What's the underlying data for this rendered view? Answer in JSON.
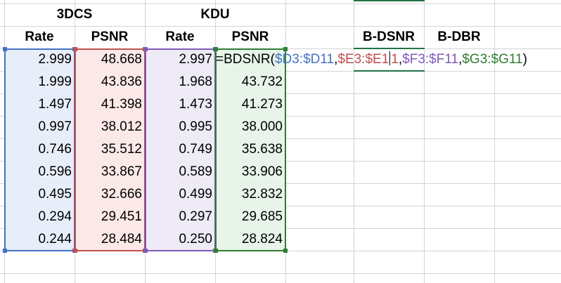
{
  "groups": [
    "3DCS",
    "KDU"
  ],
  "headers": [
    "Rate",
    "PSNR",
    "Rate",
    "PSNR"
  ],
  "result_headers": [
    "B-DSNR",
    "B-DBR"
  ],
  "rows": [
    [
      "2.999",
      "48.668",
      "2.997",
      ""
    ],
    [
      "1.999",
      "43.836",
      "1.968",
      "43.732"
    ],
    [
      "1.497",
      "41.398",
      "1.473",
      "41.273"
    ],
    [
      "0.997",
      "38.012",
      "0.995",
      "38.000"
    ],
    [
      "0.746",
      "35.512",
      "0.749",
      "35.638"
    ],
    [
      "0.596",
      "33.867",
      "0.589",
      "33.906"
    ],
    [
      "0.495",
      "32.666",
      "0.499",
      "32.832"
    ],
    [
      "0.294",
      "29.451",
      "0.297",
      "29.685"
    ],
    [
      "0.244",
      "28.484",
      "0.250",
      "28.824"
    ]
  ],
  "formula": {
    "prefix": "=BDSNR(",
    "arg1": "$D3:$D11",
    "sep1": ",",
    "arg2a": "$E3:$E1",
    "arg2b": "1",
    "sep2": ",",
    "arg3": "$F3:$F11",
    "sep3": ",",
    "arg4": "$G3:$G11",
    "suffix": ")"
  },
  "colors": {
    "range1": "#4472c4",
    "range2": "#c0504d",
    "range3": "#7f59b8",
    "range4": "#2f7d32",
    "fill1": "#e8eef9",
    "fill2": "#fbe9e8",
    "fill3": "#eeebf6",
    "fill4": "#e8f4ea",
    "active": "#217346"
  }
}
